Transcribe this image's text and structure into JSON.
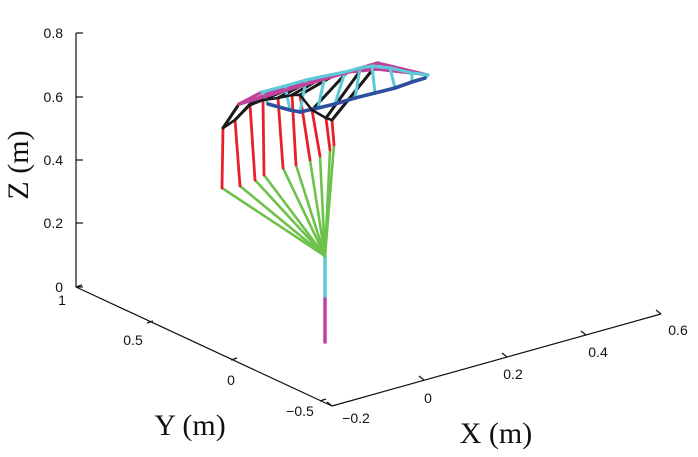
{
  "chart_data": {
    "type": "3d-line",
    "title": "",
    "axes": {
      "x": {
        "label": "X (m)",
        "ticks": [
          "−0.2",
          "0",
          "0.2",
          "0.4",
          "0.6"
        ]
      },
      "y": {
        "label": "Y (m)",
        "ticks": [
          "−0.5",
          "0",
          "0.5",
          "1"
        ]
      },
      "z": {
        "label": "Z (m)",
        "ticks": [
          "0",
          "0.2",
          "0.4",
          "0.6",
          "0.8"
        ],
        "ylim": [
          0,
          0.8
        ]
      }
    },
    "grid": false,
    "base": {
      "lower_color": "#c0439b",
      "upper_color": "#5ec9d9",
      "z_range_lower": [
        0,
        0.1
      ],
      "z_range_upper": [
        0.1,
        0.2
      ]
    },
    "links": [
      {
        "name": "green",
        "color": "#6cc24a"
      },
      {
        "name": "red",
        "color": "#e8202a"
      },
      {
        "name": "black",
        "color": "#1a1a1a"
      },
      {
        "name": "magenta",
        "color": "#c0439b"
      },
      {
        "name": "cyan",
        "color": "#5ec9d9"
      },
      {
        "name": "blue",
        "color": "#2e4f9e"
      }
    ],
    "poses": 10
  }
}
